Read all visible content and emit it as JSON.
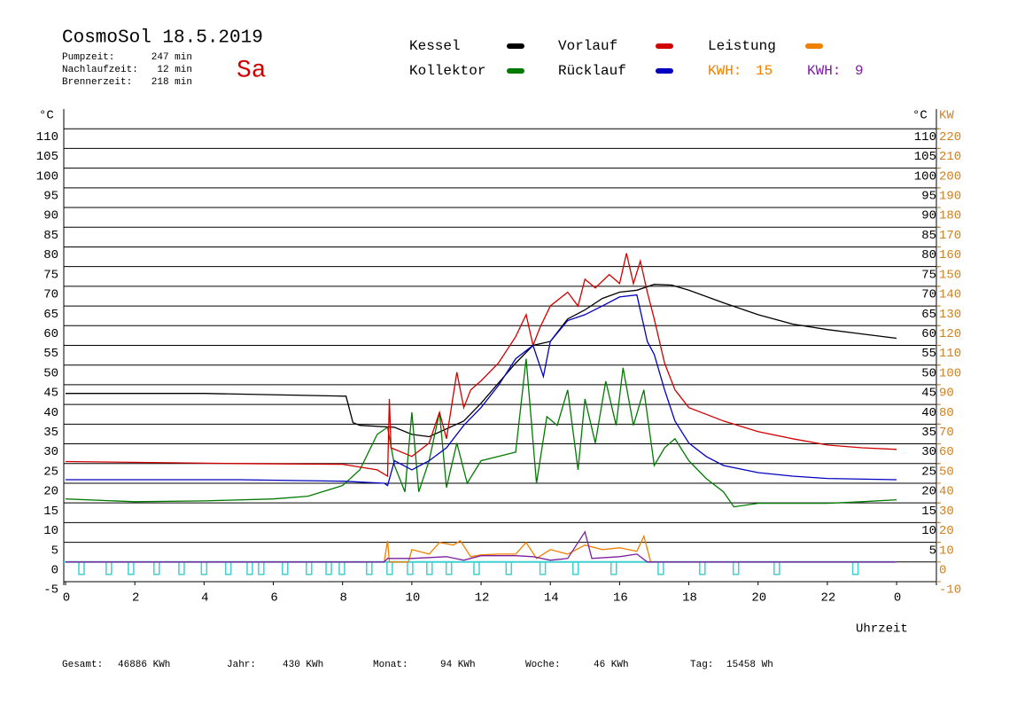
{
  "header": {
    "title": "CosmoSol 18.5.2019",
    "day": "Sa",
    "stats": [
      {
        "label": "Pumpzeit:",
        "value": "247 min"
      },
      {
        "label": "Nachlaufzeit:",
        "value": "12 min"
      },
      {
        "label": "Brennerzeit:",
        "value": "218 min"
      }
    ]
  },
  "chart_data": {
    "type": "line",
    "x_label": "Uhrzeit",
    "y_unit": "°C",
    "y2_unit": "KW",
    "kwh_label": "KWH:",
    "xlim": [
      0,
      25.2
    ],
    "xticks": [
      0,
      2,
      4,
      6,
      8,
      10,
      12,
      14,
      16,
      18,
      20,
      22,
      {
        "value": 24,
        "label": "0"
      }
    ],
    "ylim": [
      -5,
      115
    ],
    "yticks": [
      -5,
      0,
      5,
      10,
      15,
      20,
      25,
      30,
      35,
      40,
      45,
      50,
      55,
      60,
      65,
      70,
      75,
      80,
      85,
      90,
      95,
      100,
      105,
      110
    ],
    "yticks_right": [
      5,
      10,
      15,
      20,
      25,
      30,
      35,
      40,
      45,
      50,
      55,
      60,
      65,
      70,
      75,
      80,
      85,
      90,
      95,
      100,
      105,
      110
    ],
    "y2lim": [
      -10,
      230
    ],
    "y2ticks": [
      -10,
      0,
      10,
      20,
      30,
      40,
      50,
      60,
      70,
      80,
      90,
      100,
      110,
      120,
      130,
      140,
      150,
      160,
      170,
      180,
      190,
      200,
      210,
      220
    ],
    "grid": true,
    "series": [
      {
        "name": "Kessel",
        "color": "#000000",
        "x": [
          0,
          4,
          8.1,
          8.3,
          8.5,
          9.5,
          10,
          10.5,
          11.5,
          12,
          13,
          13.5,
          14,
          14.5,
          15,
          15.5,
          16,
          16.5,
          17,
          17.5,
          18,
          19,
          20,
          21,
          22,
          23,
          24
        ],
        "values": [
          42.8,
          42.8,
          42.1,
          35.4,
          34.7,
          34.2,
          32.4,
          31.8,
          35.8,
          40.3,
          50.5,
          55,
          56,
          61.7,
          64,
          66.9,
          68.5,
          69,
          70.5,
          70.3,
          69,
          65.8,
          62.8,
          60.4,
          59,
          57.9,
          56.8
        ]
      },
      {
        "name": "Kollektor",
        "color": "#007a00",
        "x": [
          0,
          2,
          4,
          6,
          7,
          8,
          8.5,
          9,
          9.3,
          9.5,
          9.8,
          10,
          10.2,
          10.5,
          10.8,
          11,
          11.3,
          11.6,
          12,
          12.5,
          13,
          13.3,
          13.6,
          13.9,
          14.2,
          14.5,
          14.8,
          15,
          15.3,
          15.6,
          15.9,
          16.1,
          16.4,
          16.7,
          17,
          17.3,
          17.6,
          18,
          18.5,
          19,
          19.3,
          20,
          22,
          23,
          24
        ],
        "values": [
          16,
          15.3,
          15.5,
          16,
          16.7,
          19.4,
          23.4,
          32.4,
          34.2,
          24.5,
          17.8,
          38,
          17.8,
          25.7,
          38,
          18.9,
          30.2,
          20,
          25.7,
          26.8,
          27.9,
          51.6,
          20,
          36.9,
          34.7,
          43.7,
          23.4,
          41.4,
          30.2,
          45.9,
          34.7,
          49.3,
          34.7,
          43.7,
          24.5,
          29,
          31.3,
          25.7,
          21.2,
          17.8,
          14,
          14.9,
          14.9,
          15.3,
          15.8
        ]
      },
      {
        "name": "Vorlauf",
        "color": "#d00000",
        "x": [
          0,
          5,
          8,
          9,
          9.3,
          9.35,
          9.4,
          10,
          10.5,
          10.8,
          11,
          11.3,
          11.5,
          11.7,
          12,
          12.5,
          13,
          13.3,
          13.5,
          13.7,
          14,
          14.5,
          14.8,
          15,
          15.3,
          15.7,
          16,
          16.2,
          16.4,
          16.6,
          16.8,
          17,
          17.3,
          17.6,
          18,
          19,
          20,
          21,
          22,
          23,
          24
        ],
        "values": [
          25.5,
          25,
          24.8,
          23.4,
          21.8,
          41.4,
          29,
          26.8,
          30.2,
          38,
          31.3,
          48.2,
          39.2,
          43.7,
          46,
          50.5,
          57.2,
          62.8,
          55,
          59.5,
          65,
          68.5,
          65,
          71.8,
          69.6,
          73,
          70.7,
          78.4,
          70.7,
          76.4,
          68.5,
          61.7,
          50.5,
          43.7,
          39.2,
          35.8,
          33.1,
          31.3,
          29.7,
          29,
          28.6
        ]
      },
      {
        "name": "Rücklauf",
        "color": "#0000c0",
        "x": [
          0,
          5,
          8,
          9.2,
          9.3,
          9.5,
          10,
          10.5,
          11,
          11.5,
          12,
          12.5,
          13,
          13.5,
          13.8,
          14,
          14.5,
          15,
          15.5,
          16,
          16.5,
          16.8,
          17,
          17.3,
          17.6,
          18,
          18.5,
          19,
          20,
          21,
          22,
          24
        ],
        "values": [
          20.9,
          20.9,
          20.5,
          20,
          19.4,
          25.7,
          23.4,
          25.7,
          29,
          34.7,
          39.2,
          44.8,
          51.6,
          55,
          47.1,
          56,
          61.3,
          62.8,
          65,
          67.3,
          67.8,
          56,
          52.7,
          43.7,
          35.8,
          30.2,
          26.8,
          24.5,
          22.7,
          21.8,
          21.2,
          20.9
        ]
      },
      {
        "name": "Leistung",
        "color": "#f08000",
        "axis": "y2",
        "kwh": 15,
        "x": [
          0,
          9.2,
          9.3,
          9.35,
          9.9,
          10,
          10.5,
          10.8,
          11.2,
          11.4,
          11.7,
          12,
          12.5,
          13,
          13.3,
          13.6,
          14,
          14.5,
          15,
          15.5,
          16,
          16.5,
          16.7,
          16.9,
          24
        ],
        "values": [
          0,
          0,
          10.8,
          0,
          0,
          6.3,
          4,
          9.9,
          8.6,
          10.8,
          2.7,
          3.6,
          4,
          4,
          9.9,
          1.8,
          6.3,
          4,
          8.6,
          6.3,
          7.2,
          5.4,
          13.1,
          0,
          0
        ]
      },
      {
        "color": "#7a1fa0",
        "axis": "y2",
        "kwh": 9,
        "x": [
          0,
          9.2,
          9.3,
          10,
          11,
          11.5,
          12,
          13,
          13.5,
          14,
          14.5,
          15,
          15.2,
          16,
          16.5,
          16.8,
          24
        ],
        "values": [
          0,
          0,
          1.8,
          1.8,
          2.7,
          0.9,
          3.2,
          3.2,
          2.7,
          0.9,
          1.8,
          15.3,
          1.8,
          2.7,
          4,
          0,
          0
        ]
      }
    ],
    "pump": {
      "color": "#40d0d0",
      "x": [
        0.46,
        1.25,
        1.89,
        2.63,
        3.35,
        4.0,
        4.7,
        5.32,
        5.65,
        6.34,
        7.03,
        7.6,
        7.98,
        8.77,
        9.36,
        9.95,
        10.51,
        11.07,
        11.87,
        12.8,
        13.78,
        14.73,
        15.83,
        17.19,
        18.39,
        19.36,
        20.54,
        22.81
      ]
    }
  },
  "footer": [
    {
      "label": "Gesamt:",
      "value": "46886 KWh"
    },
    {
      "label": "Jahr:",
      "value": "430 KWh"
    },
    {
      "label": "Monat:",
      "value": "94 KWh"
    },
    {
      "label": "Woche:",
      "value": "46 KWh"
    },
    {
      "label": "Tag:",
      "value": "15458 Wh"
    }
  ]
}
